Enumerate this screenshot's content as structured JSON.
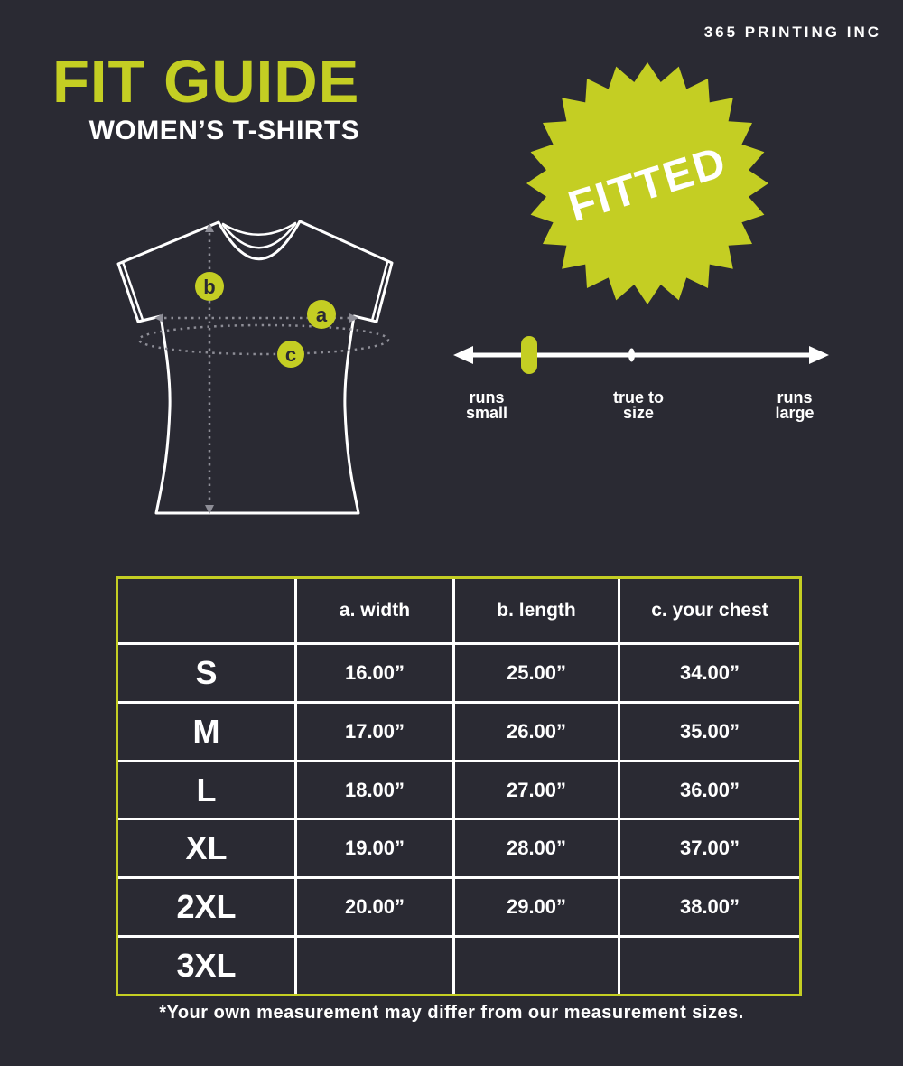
{
  "page": {
    "bg_color": "#2a2a33",
    "accent_color": "#c4ce23",
    "brand": "365 PRINTING INC",
    "title": "FIT GUIDE",
    "subtitle": "WOMEN’S T-SHIRTS",
    "footnote": "*Your own measurement may differ from our measurement sizes."
  },
  "badge": {
    "label": "FITTED"
  },
  "diagram": {
    "description": "women's t-shirt outline with measurement markers",
    "markers": [
      {
        "id": "a",
        "label": "a",
        "measures": "width"
      },
      {
        "id": "b",
        "label": "b",
        "measures": "length"
      },
      {
        "id": "c",
        "label": "c",
        "measures": "your chest"
      }
    ]
  },
  "fit_scale": {
    "labels": [
      {
        "line1": "runs",
        "line2": "small"
      },
      {
        "line1": "true to",
        "line2": "size"
      },
      {
        "line1": "runs",
        "line2": "large"
      }
    ],
    "marker_position_fraction": 0.19,
    "marker_color": "#c4ce23"
  },
  "size_table": {
    "columns": [
      "",
      "a. width",
      "b. length",
      "c. your chest"
    ],
    "rows": [
      {
        "size": "S",
        "width": "16.00”",
        "length": "25.00”",
        "chest": "34.00”"
      },
      {
        "size": "M",
        "width": "17.00”",
        "length": "26.00”",
        "chest": "35.00”"
      },
      {
        "size": "L",
        "width": "18.00”",
        "length": "27.00”",
        "chest": "36.00”"
      },
      {
        "size": "XL",
        "width": "19.00”",
        "length": "28.00”",
        "chest": "37.00”"
      },
      {
        "size": "2XL",
        "width": "20.00”",
        "length": "29.00”",
        "chest": "38.00”"
      },
      {
        "size": "3XL",
        "width": "",
        "length": "",
        "chest": ""
      }
    ]
  }
}
